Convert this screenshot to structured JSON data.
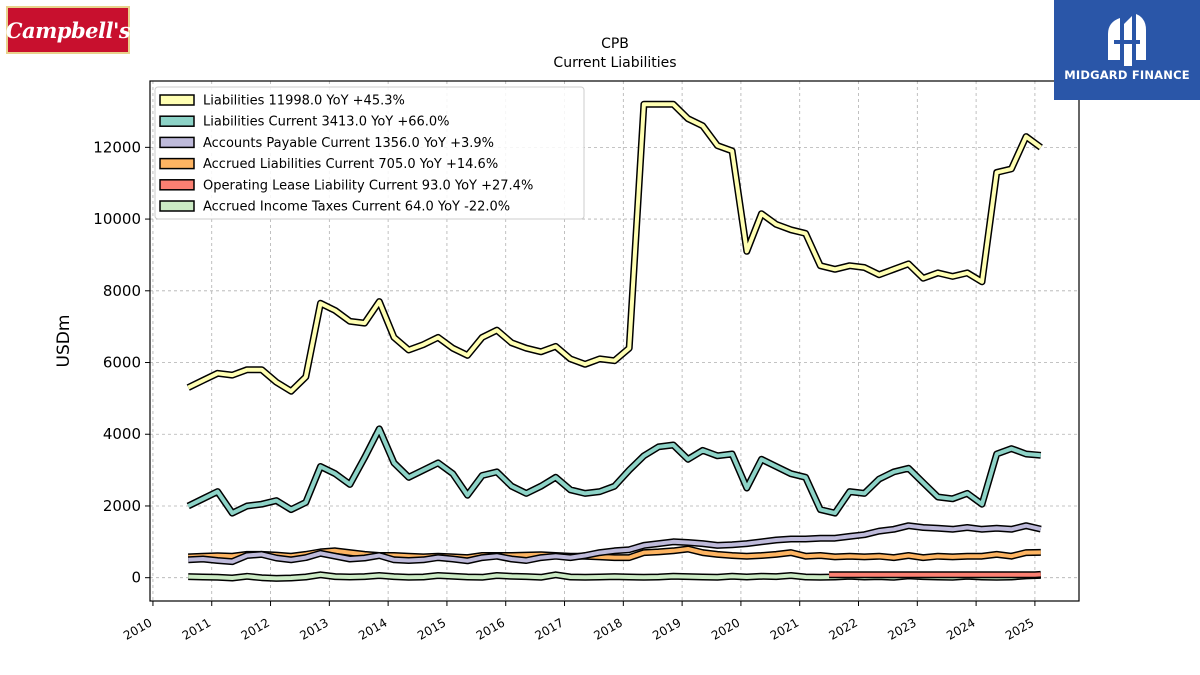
{
  "logos": {
    "left_text": "Campbell's",
    "right_text": "MIDGARD FINANCE"
  },
  "colors": {
    "liabilities": "#ffffb3",
    "liabilities_current": "#8dd3c7",
    "accounts_payable": "#bebada",
    "accrued_liabilities": "#fdb462",
    "operating_lease": "#fb8072",
    "accrued_income_taxes": "#ccebc5",
    "outline": "#000000"
  },
  "chart_data": {
    "type": "line",
    "title": "CPB",
    "subtitle": "Current  Liabilities",
    "ylabel": "USDm",
    "xlabel": "",
    "xlim": [
      2009.95,
      2025.75
    ],
    "ylim": [
      -650,
      13850
    ],
    "yticks": [
      0,
      2000,
      4000,
      6000,
      8000,
      10000,
      12000
    ],
    "xticks": [
      2010,
      2011,
      2012,
      2013,
      2014,
      2015,
      2016,
      2017,
      2018,
      2019,
      2020,
      2021,
      2022,
      2023,
      2024,
      2025
    ],
    "grid": true,
    "legend_position": "upper-left",
    "series": [
      {
        "key": "liabilities",
        "name": "Liabilities",
        "legend": "Liabilities  11998.0 YoY +45.3%",
        "x": [
          2010.6,
          2010.85,
          2011.1,
          2011.35,
          2011.6,
          2011.85,
          2012.1,
          2012.35,
          2012.6,
          2012.85,
          2013.1,
          2013.35,
          2013.6,
          2013.85,
          2014.1,
          2014.35,
          2014.6,
          2014.85,
          2015.1,
          2015.35,
          2015.6,
          2015.85,
          2016.1,
          2016.35,
          2016.6,
          2016.85,
          2017.1,
          2017.35,
          2017.6,
          2017.85,
          2018.1,
          2018.35,
          2018.6,
          2018.85,
          2019.1,
          2019.35,
          2019.6,
          2019.85,
          2020.1,
          2020.35,
          2020.6,
          2020.85,
          2021.1,
          2021.35,
          2021.6,
          2021.85,
          2022.1,
          2022.35,
          2022.6,
          2022.85,
          2023.1,
          2023.35,
          2023.6,
          2023.85,
          2024.1,
          2024.35,
          2024.6,
          2024.85,
          2025.1
        ],
        "y": [
          5300,
          5500,
          5700,
          5650,
          5800,
          5800,
          5450,
          5200,
          5600,
          7650,
          7450,
          7150,
          7100,
          7700,
          6700,
          6350,
          6500,
          6700,
          6400,
          6200,
          6700,
          6900,
          6550,
          6400,
          6300,
          6450,
          6100,
          5950,
          6100,
          6050,
          6400,
          13200,
          13200,
          13200,
          12800,
          12600,
          12050,
          11900,
          9100,
          10150,
          9850,
          9700,
          9600,
          8700,
          8600,
          8700,
          8650,
          8450,
          8600,
          8750,
          8350,
          8500,
          8400,
          8500,
          8250,
          11300,
          11400,
          12300,
          11998
        ]
      },
      {
        "key": "liabilities_current",
        "name": "Liabilities Current",
        "legend": "Liabilities Current  3413.0 YoY +66.0%",
        "x": [
          2010.6,
          2010.85,
          2011.1,
          2011.35,
          2011.6,
          2011.85,
          2012.1,
          2012.35,
          2012.6,
          2012.85,
          2013.1,
          2013.35,
          2013.6,
          2013.85,
          2014.1,
          2014.35,
          2014.6,
          2014.85,
          2015.1,
          2015.35,
          2015.6,
          2015.85,
          2016.1,
          2016.35,
          2016.6,
          2016.85,
          2017.1,
          2017.35,
          2017.6,
          2017.85,
          2018.1,
          2018.35,
          2018.6,
          2018.85,
          2019.1,
          2019.35,
          2019.6,
          2019.85,
          2020.1,
          2020.35,
          2020.6,
          2020.85,
          2021.1,
          2021.35,
          2021.6,
          2021.85,
          2022.1,
          2022.35,
          2022.6,
          2022.85,
          2023.1,
          2023.35,
          2023.6,
          2023.85,
          2024.1,
          2024.35,
          2024.6,
          2024.85,
          2025.1
        ],
        "y": [
          2000,
          2200,
          2400,
          1800,
          2000,
          2050,
          2150,
          1900,
          2100,
          3100,
          2900,
          2600,
          3350,
          4150,
          3200,
          2800,
          3000,
          3200,
          2900,
          2300,
          2850,
          2950,
          2550,
          2350,
          2550,
          2800,
          2450,
          2350,
          2400,
          2550,
          3000,
          3400,
          3650,
          3700,
          3300,
          3550,
          3400,
          3450,
          2500,
          3300,
          3100,
          2900,
          2800,
          1900,
          1800,
          2400,
          2350,
          2750,
          2950,
          3050,
          2650,
          2250,
          2200,
          2350,
          2050,
          3450,
          3600,
          3450,
          3413
        ]
      },
      {
        "key": "accounts_payable",
        "name": "Accounts Payable Current",
        "legend": "Accounts Payable Current  1356.0 YoY +3.9%",
        "x": [
          2010.6,
          2010.85,
          2011.1,
          2011.35,
          2011.6,
          2011.85,
          2012.1,
          2012.35,
          2012.6,
          2012.85,
          2013.1,
          2013.35,
          2013.6,
          2013.85,
          2014.1,
          2014.35,
          2014.6,
          2014.85,
          2015.1,
          2015.35,
          2015.6,
          2015.85,
          2016.1,
          2016.35,
          2016.6,
          2016.85,
          2017.1,
          2017.35,
          2017.6,
          2017.85,
          2018.1,
          2018.35,
          2018.6,
          2018.85,
          2019.1,
          2019.35,
          2019.6,
          2019.85,
          2020.1,
          2020.35,
          2020.6,
          2020.85,
          2021.1,
          2021.35,
          2021.6,
          2021.85,
          2022.1,
          2022.35,
          2022.6,
          2022.85,
          2023.1,
          2023.35,
          2023.6,
          2023.85,
          2024.1,
          2024.35,
          2024.6,
          2024.85,
          2025.1
        ],
        "y": [
          500,
          520,
          480,
          450,
          620,
          650,
          550,
          500,
          560,
          680,
          600,
          520,
          550,
          620,
          500,
          480,
          500,
          560,
          520,
          470,
          560,
          600,
          520,
          480,
          560,
          600,
          560,
          620,
          700,
          750,
          780,
          900,
          950,
          1000,
          980,
          950,
          900,
          920,
          950,
          1000,
          1050,
          1080,
          1080,
          1100,
          1100,
          1150,
          1200,
          1300,
          1350,
          1450,
          1400,
          1380,
          1350,
          1400,
          1350,
          1380,
          1350,
          1450,
          1356
        ]
      },
      {
        "key": "accrued_liabilities",
        "name": "Accrued Liabilities Current",
        "legend": "Accrued Liabilities Current  705.0 YoY +14.6%",
        "x": [
          2010.6,
          2010.85,
          2011.1,
          2011.35,
          2011.6,
          2011.85,
          2012.1,
          2012.35,
          2012.6,
          2012.85,
          2013.1,
          2013.35,
          2013.6,
          2013.85,
          2014.1,
          2014.35,
          2014.6,
          2014.85,
          2015.1,
          2015.35,
          2015.6,
          2015.85,
          2016.1,
          2016.35,
          2016.6,
          2016.85,
          2017.1,
          2017.35,
          2017.6,
          2017.85,
          2018.1,
          2018.35,
          2018.6,
          2018.85,
          2019.1,
          2019.35,
          2019.6,
          2019.85,
          2020.1,
          2020.35,
          2020.6,
          2020.85,
          2021.1,
          2021.35,
          2021.6,
          2021.85,
          2022.1,
          2022.35,
          2022.6,
          2022.85,
          2023.1,
          2023.35,
          2023.6,
          2023.85,
          2024.1,
          2024.35,
          2024.6,
          2024.85,
          2025.1
        ],
        "y": [
          580,
          600,
          610,
          600,
          650,
          650,
          630,
          600,
          650,
          720,
          750,
          700,
          650,
          620,
          620,
          600,
          580,
          600,
          580,
          560,
          620,
          620,
          620,
          630,
          640,
          620,
          600,
          600,
          580,
          560,
          560,
          700,
          720,
          750,
          800,
          700,
          650,
          620,
          600,
          620,
          650,
          700,
          600,
          620,
          580,
          600,
          580,
          600,
          560,
          620,
          560,
          600,
          580,
          600,
          600,
          650,
          600,
          700,
          705
        ]
      },
      {
        "key": "operating_lease",
        "name": "Operating Lease Liability Current",
        "legend": "Operating Lease Liability Current  93.0 YoY +27.4%",
        "x": [
          2021.5,
          2021.75,
          2022.0,
          2022.25,
          2022.5,
          2022.75,
          2023.0,
          2023.25,
          2023.5,
          2023.75,
          2024.0,
          2024.25,
          2024.5,
          2024.75,
          2025.0,
          2025.1
        ],
        "y": [
          80,
          80,
          80,
          80,
          80,
          80,
          80,
          80,
          80,
          80,
          80,
          80,
          80,
          80,
          80,
          93
        ]
      },
      {
        "key": "accrued_income_taxes",
        "name": "Accrued Income Taxes Current",
        "legend": "Accrued Income Taxes Current  64.0 YoY -22.0%",
        "x": [
          2010.6,
          2010.85,
          2011.1,
          2011.35,
          2011.6,
          2011.85,
          2012.1,
          2012.35,
          2012.6,
          2012.85,
          2013.1,
          2013.35,
          2013.6,
          2013.85,
          2014.1,
          2014.35,
          2014.6,
          2014.85,
          2015.1,
          2015.35,
          2015.6,
          2015.85,
          2016.1,
          2016.35,
          2016.6,
          2016.85,
          2017.1,
          2017.35,
          2017.6,
          2017.85,
          2018.1,
          2018.35,
          2018.6,
          2018.85,
          2019.1,
          2019.35,
          2019.6,
          2019.85,
          2020.1,
          2020.35,
          2020.6,
          2020.85,
          2021.1,
          2021.35,
          2021.6,
          2021.85,
          2022.1,
          2022.35,
          2022.6,
          2022.85,
          2023.1,
          2023.35,
          2023.6,
          2023.85,
          2024.1,
          2024.35,
          2024.6,
          2024.85,
          2025.1
        ],
        "y": [
          30,
          20,
          10,
          -10,
          40,
          0,
          -20,
          -10,
          20,
          80,
          30,
          20,
          30,
          60,
          30,
          10,
          20,
          60,
          40,
          20,
          10,
          60,
          40,
          30,
          10,
          80,
          20,
          10,
          20,
          30,
          20,
          10,
          20,
          40,
          30,
          20,
          10,
          40,
          20,
          40,
          30,
          60,
          20,
          10,
          20,
          40,
          20,
          30,
          10,
          50,
          30,
          20,
          10,
          40,
          20,
          10,
          20,
          50,
          64
        ]
      }
    ]
  }
}
